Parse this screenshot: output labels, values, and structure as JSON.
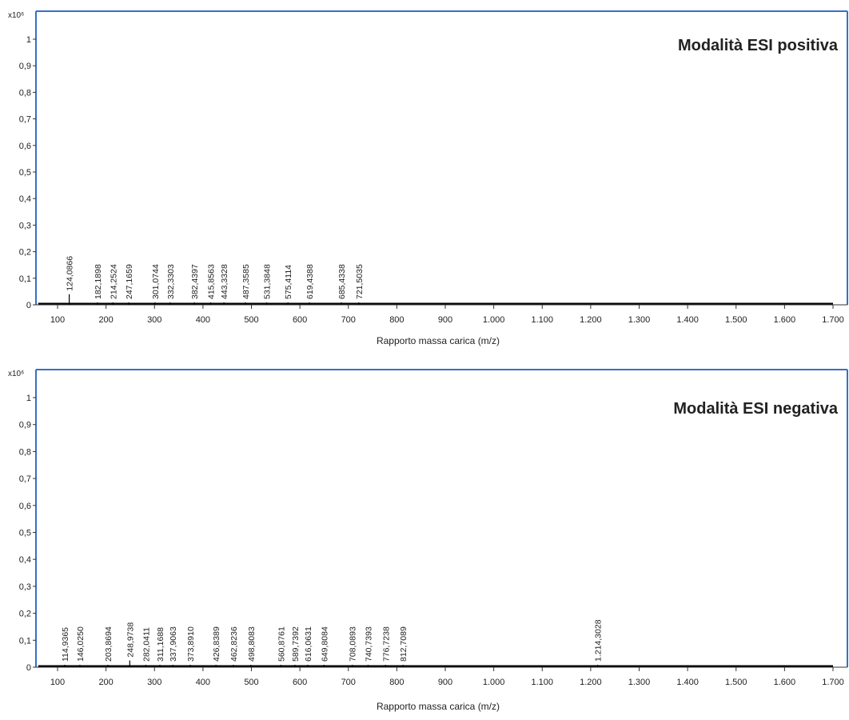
{
  "chart_data": [
    {
      "type": "bar",
      "title": "Modalità ESI positiva",
      "xlabel": "Rapporto massa carica (m/z)",
      "ylabel": "",
      "y_multiplier": "x10⁶",
      "xlim": [
        60,
        1700
      ],
      "ylim": [
        0,
        1.1
      ],
      "x_ticks": [
        100,
        200,
        300,
        400,
        500,
        600,
        700,
        800,
        900,
        1000,
        1100,
        1200,
        1300,
        1400,
        1500,
        1600,
        1700
      ],
      "x_tick_labels": [
        "100",
        "200",
        "300",
        "400",
        "500",
        "600",
        "700",
        "800",
        "900",
        "1.000",
        "1.100",
        "1.200",
        "1.300",
        "1.400",
        "1.500",
        "1.600",
        "1.700"
      ],
      "y_ticks": [
        0,
        0.1,
        0.2,
        0.3,
        0.4,
        0.5,
        0.6,
        0.7,
        0.8,
        0.9,
        1
      ],
      "y_tick_labels": [
        "0",
        "0,1",
        "0,2",
        "0,3",
        "0,4",
        "0,5",
        "0,6",
        "0,7",
        "0,8",
        "0,9",
        "1"
      ],
      "grid": false,
      "peaks": [
        {
          "mz": 124.0866,
          "intensity": 0.04,
          "label": "124,0866"
        },
        {
          "mz": 182.1898,
          "intensity": 0.004,
          "label": "182,1898"
        },
        {
          "mz": 214.2524,
          "intensity": 0.004,
          "label": "214,2524"
        },
        {
          "mz": 247.1659,
          "intensity": 0.003,
          "label": "247,1659"
        },
        {
          "mz": 301.0744,
          "intensity": 0.003,
          "label": "301,0744"
        },
        {
          "mz": 332.3303,
          "intensity": 0.003,
          "label": "332,3303"
        },
        {
          "mz": 382.4397,
          "intensity": 0.003,
          "label": "382,4397"
        },
        {
          "mz": 415.8563,
          "intensity": 0.003,
          "label": "415,8563"
        },
        {
          "mz": 443.3328,
          "intensity": 0.003,
          "label": "443,3328"
        },
        {
          "mz": 487.3585,
          "intensity": 0.003,
          "label": "487,3585"
        },
        {
          "mz": 531.3848,
          "intensity": 0.003,
          "label": "531,3848"
        },
        {
          "mz": 575.4114,
          "intensity": 0.003,
          "label": "575,4114"
        },
        {
          "mz": 619.4388,
          "intensity": 0.003,
          "label": "619,4388"
        },
        {
          "mz": 685.4338,
          "intensity": 0.003,
          "label": "685,4338"
        },
        {
          "mz": 721.5035,
          "intensity": 0.003,
          "label": "721,5035"
        }
      ]
    },
    {
      "type": "bar",
      "title": "Modalità ESI negativa",
      "xlabel": "Rapporto massa carica (m/z)",
      "ylabel": "",
      "y_multiplier": "x10⁶",
      "xlim": [
        60,
        1700
      ],
      "ylim": [
        0,
        1.1
      ],
      "x_ticks": [
        100,
        200,
        300,
        400,
        500,
        600,
        700,
        800,
        900,
        1000,
        1100,
        1200,
        1300,
        1400,
        1500,
        1600,
        1700
      ],
      "x_tick_labels": [
        "100",
        "200",
        "300",
        "400",
        "500",
        "600",
        "700",
        "800",
        "900",
        "1.000",
        "1.100",
        "1.200",
        "1.300",
        "1.400",
        "1.500",
        "1.600",
        "1.700"
      ],
      "y_ticks": [
        0,
        0.1,
        0.2,
        0.3,
        0.4,
        0.5,
        0.6,
        0.7,
        0.8,
        0.9,
        1
      ],
      "y_tick_labels": [
        "0",
        "0,1",
        "0,2",
        "0,3",
        "0,4",
        "0,5",
        "0,6",
        "0,7",
        "0,8",
        "0,9",
        "1"
      ],
      "grid": false,
      "peaks": [
        {
          "mz": 114.9365,
          "intensity": 0.004,
          "label": "114,9365"
        },
        {
          "mz": 146.025,
          "intensity": 0.004,
          "label": "146,0250"
        },
        {
          "mz": 203.8694,
          "intensity": 0.004,
          "label": "203,8694"
        },
        {
          "mz": 248.9738,
          "intensity": 0.025,
          "label": "248,9738"
        },
        {
          "mz": 282.0411,
          "intensity": 0.004,
          "label": "282,0411"
        },
        {
          "mz": 311.1688,
          "intensity": 0.004,
          "label": "311,1688"
        },
        {
          "mz": 337.9063,
          "intensity": 0.004,
          "label": "337,9063"
        },
        {
          "mz": 373.891,
          "intensity": 0.004,
          "label": "373,8910"
        },
        {
          "mz": 426.8389,
          "intensity": 0.004,
          "label": "426,8389"
        },
        {
          "mz": 462.8236,
          "intensity": 0.004,
          "label": "462,8236"
        },
        {
          "mz": 498.8083,
          "intensity": 0.004,
          "label": "498,8083"
        },
        {
          "mz": 560.8761,
          "intensity": 0.004,
          "label": "560,8761"
        },
        {
          "mz": 589.7392,
          "intensity": 0.004,
          "label": "589,7392"
        },
        {
          "mz": 616.0631,
          "intensity": 0.004,
          "label": "616,0631"
        },
        {
          "mz": 649.8084,
          "intensity": 0.004,
          "label": "649,8084"
        },
        {
          "mz": 708.0893,
          "intensity": 0.004,
          "label": "708,0893"
        },
        {
          "mz": 740.7393,
          "intensity": 0.004,
          "label": "740,7393"
        },
        {
          "mz": 776.7238,
          "intensity": 0.004,
          "label": "776,7238"
        },
        {
          "mz": 812.7089,
          "intensity": 0.004,
          "label": "812,7089"
        },
        {
          "mz": 1214.3028,
          "intensity": 0.004,
          "label": "1.214,3028"
        }
      ]
    }
  ],
  "colors": {
    "frame": "#3a6fc4",
    "axis": "#333333",
    "peak": "#000000",
    "text": "#222222"
  }
}
